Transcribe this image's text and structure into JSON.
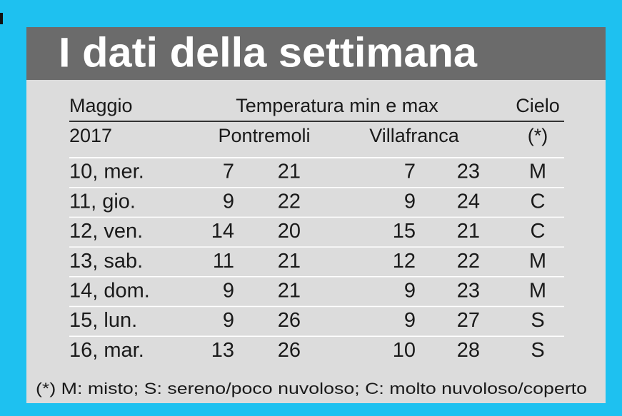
{
  "header": {
    "title": "I dati della settimana"
  },
  "table": {
    "header": [
      "Maggio",
      "Temperatura min e max",
      "Cielo"
    ],
    "subheader": [
      "2017",
      "Pontremoli",
      "Villafranca",
      "(*)"
    ],
    "rows": [
      [
        "10, mer.",
        7,
        21,
        7,
        23,
        "M"
      ],
      [
        "11, gio.",
        9,
        22,
        9,
        24,
        "C"
      ],
      [
        "12, ven.",
        14,
        20,
        15,
        21,
        "C"
      ],
      [
        "13, sab.",
        11,
        21,
        12,
        22,
        "M"
      ],
      [
        "14, dom.",
        9,
        21,
        9,
        23,
        "M"
      ],
      [
        "15, lun.",
        9,
        26,
        9,
        27,
        "S"
      ],
      [
        "16, mar.",
        13,
        26,
        10,
        28,
        "S"
      ]
    ]
  },
  "footnote": "(*) M: misto; S: sereno/poco nuvoloso; C: molto nuvoloso/coperto"
}
